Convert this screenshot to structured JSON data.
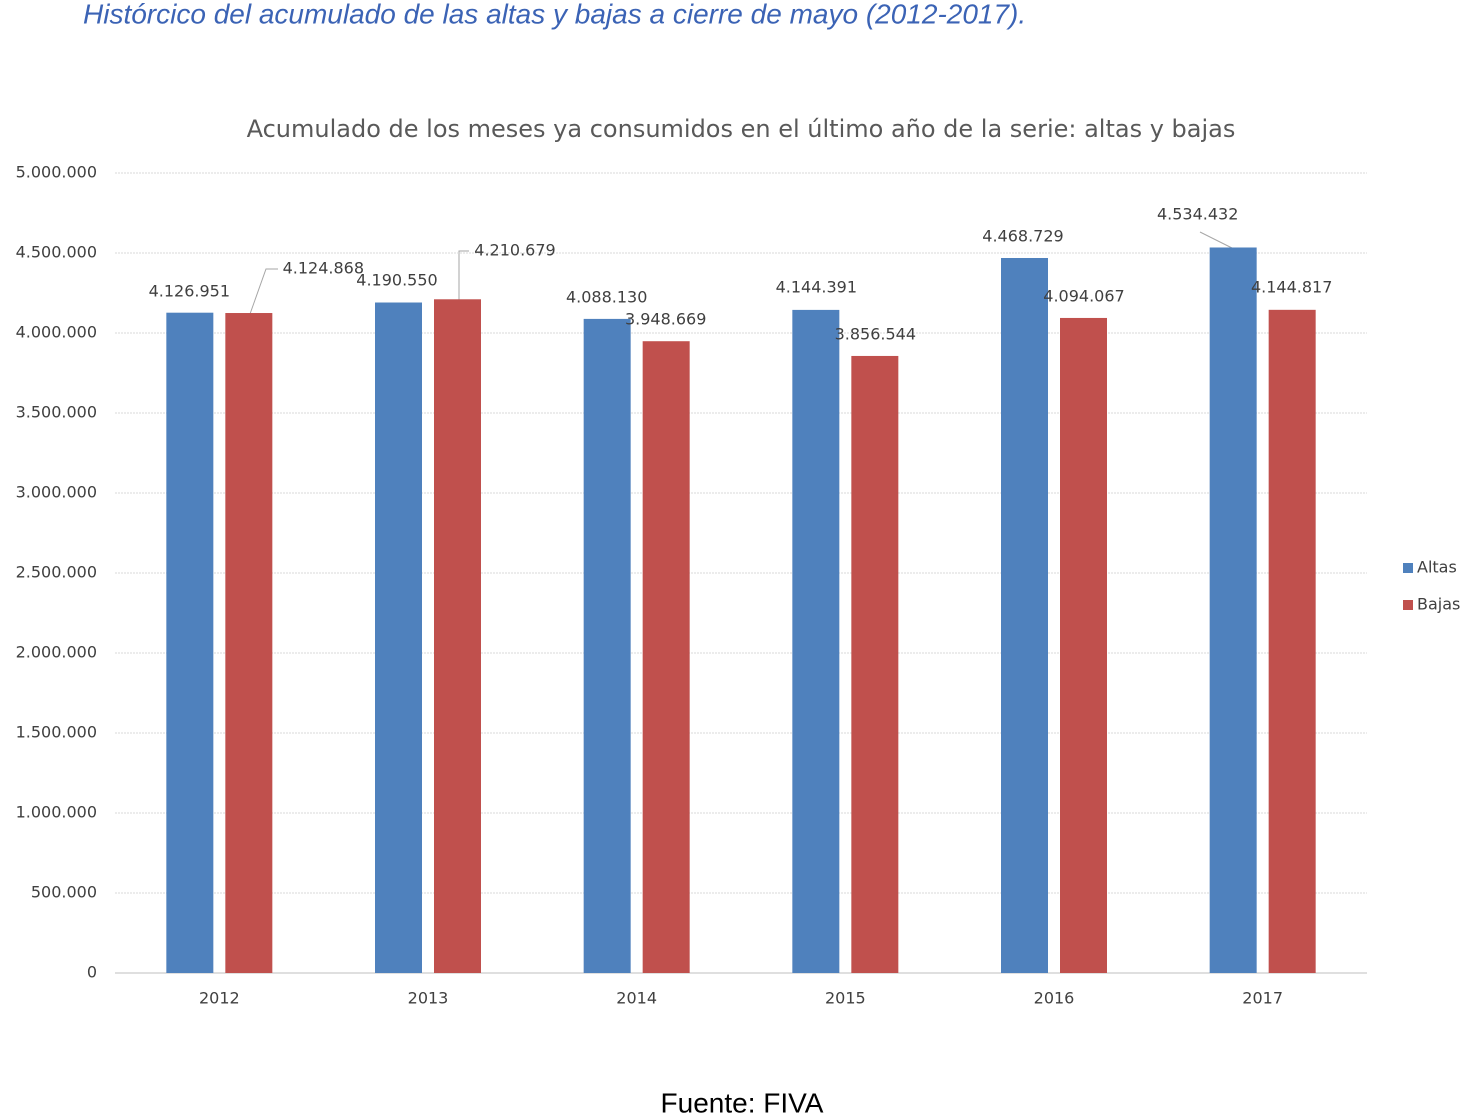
{
  "heading": "Histórcico del acumulado de las altas y bajas a cierre de mayo (2012-2017).",
  "source": "Fuente: FIVA",
  "chart_data": {
    "type": "bar",
    "title": "Acumulado de los meses ya consumidos en el último año de la serie: altas y bajas",
    "categories": [
      "2012",
      "2013",
      "2014",
      "2015",
      "2016",
      "2017"
    ],
    "series": [
      {
        "name": "Altas",
        "color": "#4f81bd",
        "values": [
          4126951,
          4190550,
          4088130,
          4144391,
          4468729,
          4534432
        ],
        "value_labels": [
          "4.126.951",
          "4.190.550",
          "4.088.130",
          "4.144.391",
          "4.468.729",
          "4.534.432"
        ]
      },
      {
        "name": "Bajas",
        "color": "#c0504d",
        "values": [
          4124868,
          4210679,
          3948669,
          3856544,
          4094067,
          4144817
        ],
        "value_labels": [
          "4.124.868",
          "4.210.679",
          "3.948.669",
          "3.856.544",
          "4.094.067",
          "4.144.817"
        ]
      }
    ],
    "ylim": [
      0,
      5000000
    ],
    "yticks": [
      0,
      {
        "value": 500000,
        "label": "500.000"
      },
      {
        "value": 1000000,
        "label": "1.000.000"
      },
      {
        "value": 1500000,
        "label": "1.500.000"
      },
      {
        "value": 2000000,
        "label": "2.000.000"
      },
      {
        "value": 2500000,
        "label": "2.500.000"
      },
      {
        "value": 3000000,
        "label": "3.000.000"
      },
      {
        "value": 3500000,
        "label": "3.500.000"
      },
      {
        "value": 4000000,
        "label": "4.000.000"
      },
      {
        "value": 4500000,
        "label": "4.500.000"
      },
      {
        "value": 5000000,
        "label": "5.000.000"
      }
    ],
    "grid": true,
    "legend": "right"
  }
}
